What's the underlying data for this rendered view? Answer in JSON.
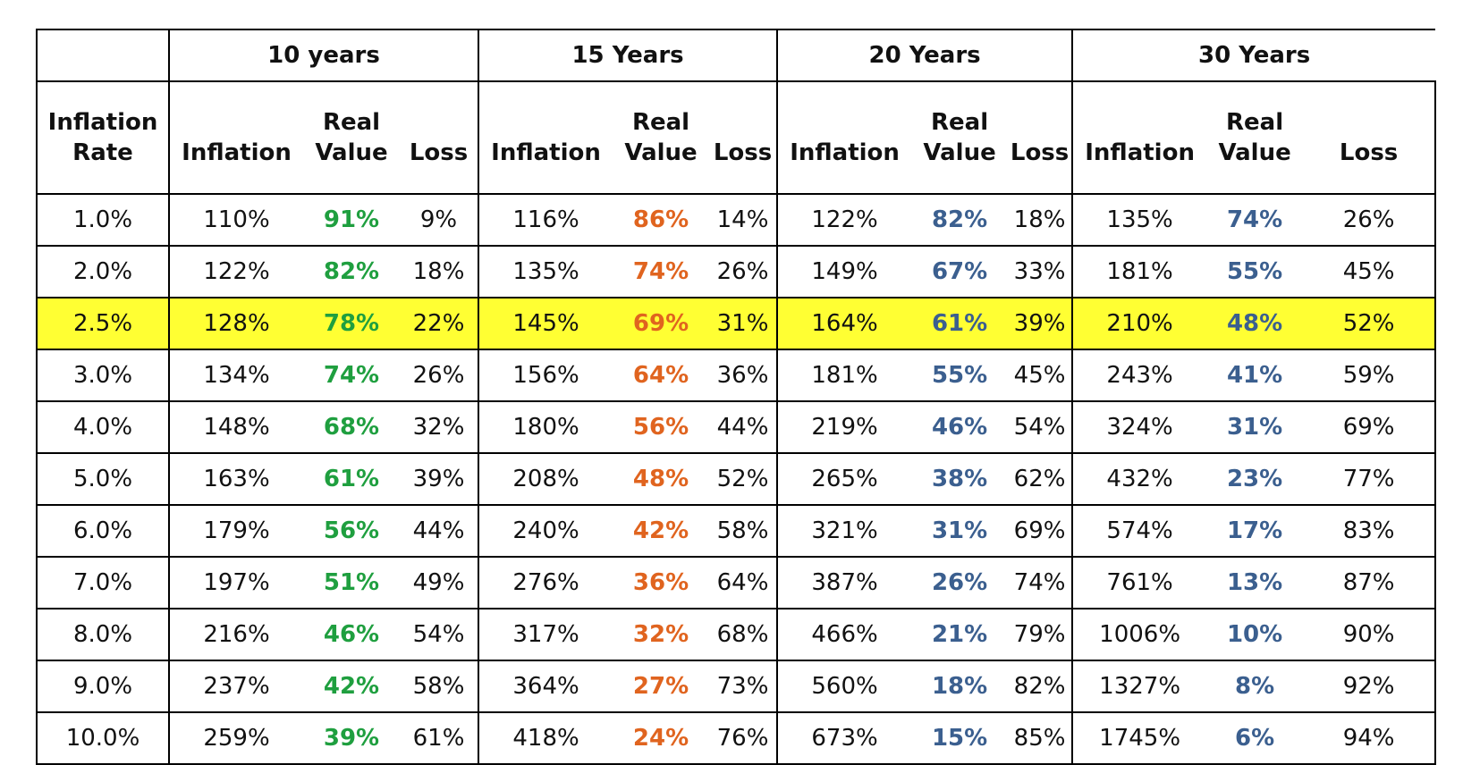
{
  "chart_data": {
    "type": "table",
    "corner_header": "",
    "rate_header": [
      "Inflation",
      "Rate"
    ],
    "sub_headers": {
      "inflation": "Inflation",
      "real_value": [
        "Real",
        "Value"
      ],
      "loss": "Loss"
    },
    "groups": [
      {
        "label": "10 years",
        "color": "#1f9f3f"
      },
      {
        "label": "15 Years",
        "color": "#e0641f"
      },
      {
        "label": "20 Years",
        "color": "#3b5f8f"
      },
      {
        "label": "30 Years",
        "color": "#3b5f8f"
      }
    ],
    "highlight_color": "#ffff33",
    "highlight_row_index": 2,
    "rows": [
      {
        "rate": "1.0%",
        "cells": [
          [
            "110%",
            "91%",
            "9%"
          ],
          [
            "116%",
            "86%",
            "14%"
          ],
          [
            "122%",
            "82%",
            "18%"
          ],
          [
            "135%",
            "74%",
            "26%"
          ]
        ]
      },
      {
        "rate": "2.0%",
        "cells": [
          [
            "122%",
            "82%",
            "18%"
          ],
          [
            "135%",
            "74%",
            "26%"
          ],
          [
            "149%",
            "67%",
            "33%"
          ],
          [
            "181%",
            "55%",
            "45%"
          ]
        ]
      },
      {
        "rate": "2.5%",
        "cells": [
          [
            "128%",
            "78%",
            "22%"
          ],
          [
            "145%",
            "69%",
            "31%"
          ],
          [
            "164%",
            "61%",
            "39%"
          ],
          [
            "210%",
            "48%",
            "52%"
          ]
        ]
      },
      {
        "rate": "3.0%",
        "cells": [
          [
            "134%",
            "74%",
            "26%"
          ],
          [
            "156%",
            "64%",
            "36%"
          ],
          [
            "181%",
            "55%",
            "45%"
          ],
          [
            "243%",
            "41%",
            "59%"
          ]
        ]
      },
      {
        "rate": "4.0%",
        "cells": [
          [
            "148%",
            "68%",
            "32%"
          ],
          [
            "180%",
            "56%",
            "44%"
          ],
          [
            "219%",
            "46%",
            "54%"
          ],
          [
            "324%",
            "31%",
            "69%"
          ]
        ]
      },
      {
        "rate": "5.0%",
        "cells": [
          [
            "163%",
            "61%",
            "39%"
          ],
          [
            "208%",
            "48%",
            "52%"
          ],
          [
            "265%",
            "38%",
            "62%"
          ],
          [
            "432%",
            "23%",
            "77%"
          ]
        ]
      },
      {
        "rate": "6.0%",
        "cells": [
          [
            "179%",
            "56%",
            "44%"
          ],
          [
            "240%",
            "42%",
            "58%"
          ],
          [
            "321%",
            "31%",
            "69%"
          ],
          [
            "574%",
            "17%",
            "83%"
          ]
        ]
      },
      {
        "rate": "7.0%",
        "cells": [
          [
            "197%",
            "51%",
            "49%"
          ],
          [
            "276%",
            "36%",
            "64%"
          ],
          [
            "387%",
            "26%",
            "74%"
          ],
          [
            "761%",
            "13%",
            "87%"
          ]
        ]
      },
      {
        "rate": "8.0%",
        "cells": [
          [
            "216%",
            "46%",
            "54%"
          ],
          [
            "317%",
            "32%",
            "68%"
          ],
          [
            "466%",
            "21%",
            "79%"
          ],
          [
            "1006%",
            "10%",
            "90%"
          ]
        ]
      },
      {
        "rate": "9.0%",
        "cells": [
          [
            "237%",
            "42%",
            "58%"
          ],
          [
            "364%",
            "27%",
            "73%"
          ],
          [
            "560%",
            "18%",
            "82%"
          ],
          [
            "1327%",
            "8%",
            "92%"
          ]
        ]
      },
      {
        "rate": "10.0%",
        "cells": [
          [
            "259%",
            "39%",
            "61%"
          ],
          [
            "418%",
            "24%",
            "76%"
          ],
          [
            "673%",
            "15%",
            "85%"
          ],
          [
            "1745%",
            "6%",
            "94%"
          ]
        ]
      }
    ]
  }
}
